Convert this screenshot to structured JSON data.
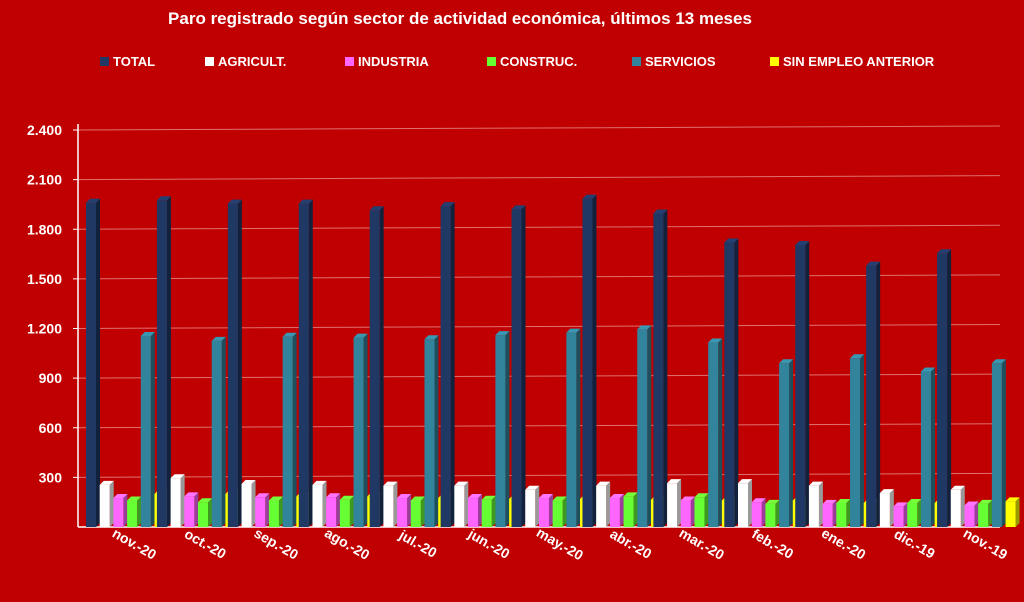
{
  "chart_data": {
    "type": "bar",
    "title": "Paro registrado según sector de actividad económica, últimos 13 meses",
    "xlabel": "",
    "ylabel": "",
    "ylim": [
      0,
      2400
    ],
    "yticks": [
      "2.400",
      "2.100",
      "1.800",
      "1.500",
      "1.200",
      "900",
      "600",
      "300"
    ],
    "ytick_values": [
      2400,
      2100,
      1800,
      1500,
      1200,
      900,
      600,
      300
    ],
    "grid": true,
    "legend_position": "top",
    "categories": [
      "nov.-20",
      "oct.-20",
      "sep.-20",
      "ago.-20",
      "jul.-20",
      "jun.-20",
      "may.-20",
      "abr.-20",
      "mar.-20",
      "feb.-20",
      "ene.-20",
      "dic.-19",
      "nov.-19"
    ],
    "series": [
      {
        "name": "TOTAL",
        "color": "#1f3864",
        "values": [
          1960,
          1975,
          1955,
          1955,
          1915,
          1940,
          1920,
          1985,
          1895,
          1720,
          1705,
          1580,
          1655
        ]
      },
      {
        "name": "AGRICULT.",
        "color": "#ffffff",
        "values": [
          255,
          295,
          260,
          255,
          250,
          250,
          225,
          250,
          265,
          265,
          250,
          205,
          225
        ]
      },
      {
        "name": "INDUSTRIA",
        "color": "#ff66ff",
        "values": [
          175,
          185,
          180,
          180,
          175,
          175,
          175,
          175,
          160,
          150,
          140,
          125,
          130
        ]
      },
      {
        "name": "CONSTRUC.",
        "color": "#66ff33",
        "values": [
          160,
          150,
          160,
          165,
          160,
          165,
          160,
          185,
          180,
          140,
          145,
          145,
          140
        ]
      },
      {
        "name": "SERVICIOS",
        "color": "#31849b",
        "values": [
          1155,
          1125,
          1150,
          1145,
          1135,
          1160,
          1175,
          1195,
          1115,
          990,
          1020,
          940,
          990
        ]
      },
      {
        "name": "SIN EMPLEO ANTERIOR",
        "color": "#ffff00",
        "values": [
          200,
          200,
          185,
          185,
          175,
          170,
          170,
          165,
          160,
          160,
          145,
          145,
          155
        ]
      }
    ]
  }
}
